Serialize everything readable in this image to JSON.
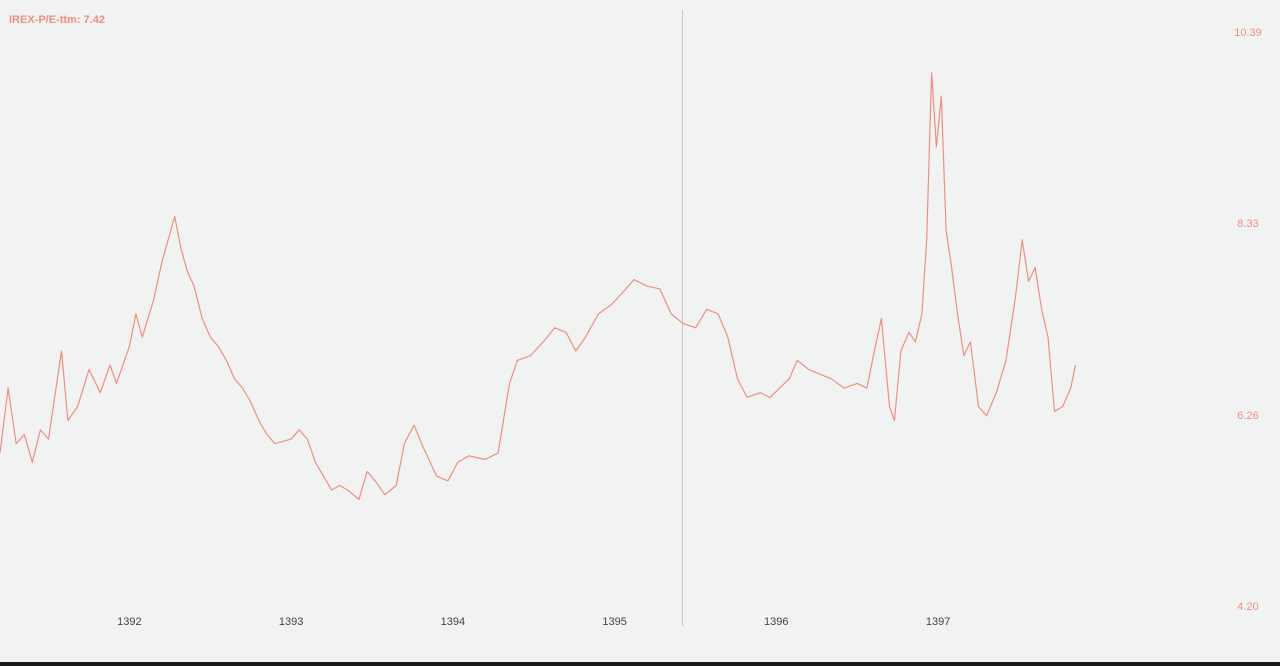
{
  "chart_data": {
    "type": "line",
    "title": "IREX-P/E-ttm: 7.42",
    "xlabel": "",
    "ylabel": "",
    "x_ticks": [
      "1392",
      "1393",
      "1394",
      "1395",
      "1396",
      "1397"
    ],
    "y_ticks": [
      "10.39",
      "8.33",
      "6.26",
      "4.20"
    ],
    "ylim": [
      4.2,
      10.39
    ],
    "xlim": [
      1391.2,
      1398.7
    ],
    "grid": false,
    "legend": "none",
    "crosshair_x": 1395.42,
    "colors": {
      "line": "#f08f80",
      "background": "#f1f2f2",
      "crosshair": "#c8c8c8",
      "x_tick_text": "#444444",
      "y_tick_text": "#f08f80"
    },
    "series": [
      {
        "values": [
          [
            1391.2,
            5.85
          ],
          [
            1391.25,
            6.55
          ],
          [
            1391.3,
            5.95
          ],
          [
            1391.35,
            6.05
          ],
          [
            1391.4,
            5.75
          ],
          [
            1391.45,
            6.1
          ],
          [
            1391.5,
            6.0
          ],
          [
            1391.58,
            6.95
          ],
          [
            1391.62,
            6.2
          ],
          [
            1391.68,
            6.35
          ],
          [
            1391.75,
            6.75
          ],
          [
            1391.82,
            6.5
          ],
          [
            1391.88,
            6.8
          ],
          [
            1391.92,
            6.6
          ],
          [
            1392.0,
            7.0
          ],
          [
            1392.04,
            7.35
          ],
          [
            1392.08,
            7.1
          ],
          [
            1392.15,
            7.5
          ],
          [
            1392.2,
            7.9
          ],
          [
            1392.24,
            8.15
          ],
          [
            1392.28,
            8.4
          ],
          [
            1392.32,
            8.05
          ],
          [
            1392.36,
            7.8
          ],
          [
            1392.4,
            7.65
          ],
          [
            1392.45,
            7.3
          ],
          [
            1392.5,
            7.1
          ],
          [
            1392.55,
            7.0
          ],
          [
            1392.6,
            6.85
          ],
          [
            1392.65,
            6.65
          ],
          [
            1392.7,
            6.55
          ],
          [
            1392.75,
            6.4
          ],
          [
            1392.8,
            6.2
          ],
          [
            1392.85,
            6.05
          ],
          [
            1392.9,
            5.95
          ],
          [
            1393.0,
            6.0
          ],
          [
            1393.05,
            6.1
          ],
          [
            1393.1,
            6.0
          ],
          [
            1393.15,
            5.75
          ],
          [
            1393.2,
            5.6
          ],
          [
            1393.25,
            5.45
          ],
          [
            1393.3,
            5.5
          ],
          [
            1393.35,
            5.45
          ],
          [
            1393.42,
            5.35
          ],
          [
            1393.47,
            5.65
          ],
          [
            1393.52,
            5.55
          ],
          [
            1393.58,
            5.4
          ],
          [
            1393.65,
            5.5
          ],
          [
            1393.7,
            5.95
          ],
          [
            1393.76,
            6.15
          ],
          [
            1393.82,
            5.9
          ],
          [
            1393.9,
            5.6
          ],
          [
            1393.97,
            5.55
          ],
          [
            1394.03,
            5.75
          ],
          [
            1394.1,
            5.82
          ],
          [
            1394.2,
            5.78
          ],
          [
            1394.28,
            5.85
          ],
          [
            1394.35,
            6.6
          ],
          [
            1394.4,
            6.85
          ],
          [
            1394.48,
            6.9
          ],
          [
            1394.56,
            7.05
          ],
          [
            1394.63,
            7.2
          ],
          [
            1394.7,
            7.15
          ],
          [
            1394.76,
            6.95
          ],
          [
            1394.82,
            7.1
          ],
          [
            1394.9,
            7.35
          ],
          [
            1394.98,
            7.45
          ],
          [
            1395.06,
            7.6
          ],
          [
            1395.12,
            7.72
          ],
          [
            1395.2,
            7.65
          ],
          [
            1395.28,
            7.62
          ],
          [
            1395.35,
            7.35
          ],
          [
            1395.42,
            7.25
          ],
          [
            1395.5,
            7.2
          ],
          [
            1395.57,
            7.4
          ],
          [
            1395.64,
            7.35
          ],
          [
            1395.7,
            7.1
          ],
          [
            1395.76,
            6.65
          ],
          [
            1395.82,
            6.45
          ],
          [
            1395.9,
            6.5
          ],
          [
            1395.96,
            6.45
          ],
          [
            1396.02,
            6.55
          ],
          [
            1396.08,
            6.65
          ],
          [
            1396.13,
            6.85
          ],
          [
            1396.2,
            6.75
          ],
          [
            1396.27,
            6.7
          ],
          [
            1396.34,
            6.65
          ],
          [
            1396.42,
            6.55
          ],
          [
            1396.5,
            6.6
          ],
          [
            1396.56,
            6.55
          ],
          [
            1396.6,
            6.9
          ],
          [
            1396.65,
            7.3
          ],
          [
            1396.7,
            6.35
          ],
          [
            1396.73,
            6.2
          ],
          [
            1396.77,
            6.95
          ],
          [
            1396.82,
            7.15
          ],
          [
            1396.86,
            7.05
          ],
          [
            1396.9,
            7.35
          ],
          [
            1396.93,
            8.15
          ],
          [
            1396.96,
            9.95
          ],
          [
            1396.99,
            9.15
          ],
          [
            1397.02,
            9.7
          ],
          [
            1397.05,
            8.25
          ],
          [
            1397.08,
            7.9
          ],
          [
            1397.12,
            7.35
          ],
          [
            1397.16,
            6.9
          ],
          [
            1397.2,
            7.05
          ],
          [
            1397.25,
            6.35
          ],
          [
            1397.3,
            6.25
          ],
          [
            1397.36,
            6.5
          ],
          [
            1397.42,
            6.85
          ],
          [
            1397.48,
            7.55
          ],
          [
            1397.52,
            8.15
          ],
          [
            1397.56,
            7.7
          ],
          [
            1397.6,
            7.85
          ],
          [
            1397.64,
            7.4
          ],
          [
            1397.68,
            7.1
          ],
          [
            1397.72,
            6.3
          ],
          [
            1397.77,
            6.35
          ],
          [
            1397.82,
            6.55
          ],
          [
            1397.85,
            6.8
          ]
        ]
      }
    ]
  }
}
